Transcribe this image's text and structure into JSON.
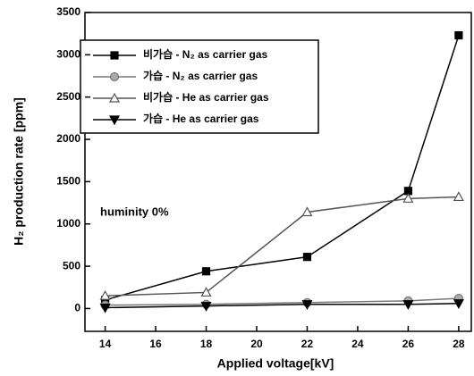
{
  "chart_data": {
    "type": "line",
    "x_label": "Applied voltage[kV]",
    "y_label": "H₂ production rate [ppm]",
    "annotation": "huminity 0%",
    "x": [
      14,
      18,
      22,
      26,
      28
    ],
    "xlim": [
      13.2,
      28.5
    ],
    "xticks": [
      14,
      16,
      18,
      20,
      22,
      24,
      26,
      28
    ],
    "ylim": [
      -270,
      3500
    ],
    "yticks": [
      0,
      500,
      1000,
      1500,
      2000,
      2500,
      3000,
      3500
    ],
    "legend": "upper left",
    "series": [
      {
        "name": "비가습 - N₂ as carrier gas",
        "color": "#000000",
        "marker": "square",
        "marker_fill": "#000000",
        "values": [
          100,
          440,
          610,
          1390,
          3230
        ]
      },
      {
        "name": "가습 - N₂ as carrier gas",
        "color": "#777777",
        "marker": "circle",
        "marker_fill": "#aaaaaa",
        "values": [
          40,
          50,
          70,
          90,
          120
        ]
      },
      {
        "name": "비가습 - He as carrier gas",
        "color": "#555555",
        "marker": "triangle-up",
        "marker_fill": "#ffffff",
        "values": [
          150,
          190,
          1140,
          1300,
          1320
        ]
      },
      {
        "name": "가습 - He as carrier gas",
        "color": "#000000",
        "marker": "triangle-down",
        "marker_fill": "#000000",
        "values": [
          10,
          30,
          50,
          50,
          60
        ]
      }
    ]
  }
}
